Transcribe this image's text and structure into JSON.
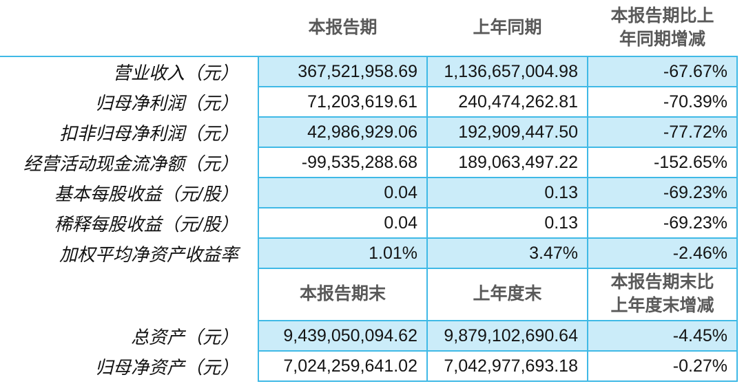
{
  "colors": {
    "cell_fill_blue": "#cbecf9",
    "border_cyan": "#3fb9e6",
    "header_text_gray": "#595959",
    "body_text": "#141414"
  },
  "table": {
    "period_header": {
      "current": "本报告期",
      "prior": "上年同期",
      "change_line1": "本报告期比上",
      "change_line2": "年同期增减"
    },
    "period_rows": [
      {
        "label": "营业收入（元）",
        "current": "367,521,958.69",
        "prior": "1,136,657,004.98",
        "change": "-67.67%"
      },
      {
        "label": "归母净利润（元）",
        "current": "71,203,619.61",
        "prior": "240,474,262.81",
        "change": "-70.39%"
      },
      {
        "label": "扣非归母净利润（元）",
        "current": "42,986,929.06",
        "prior": "192,909,447.50",
        "change": "-77.72%"
      },
      {
        "label": "经营活动现金流净额（元）",
        "current": "-99,535,288.68",
        "prior": "189,063,497.22",
        "change": "-152.65%"
      },
      {
        "label": "基本每股收益（元/股）",
        "current": "0.04",
        "prior": "0.13",
        "change": "-69.23%"
      },
      {
        "label": "稀释每股收益（元/股）",
        "current": "0.04",
        "prior": "0.13",
        "change": "-69.23%"
      },
      {
        "label": "加权平均净资产收益率",
        "current": "1.01%",
        "prior": "3.47%",
        "change": "-2.46%"
      }
    ],
    "balance_header": {
      "current": "本报告期末",
      "prior": "上年度末",
      "change_line1": "本报告期末比",
      "change_line2": "上年度末增减"
    },
    "balance_rows": [
      {
        "label": "总资产（元）",
        "current": "9,439,050,094.62",
        "prior": "9,879,102,690.64",
        "change": "-4.45%"
      },
      {
        "label": "归母净资产（元）",
        "current": "7,024,259,641.02",
        "prior": "7,042,977,693.18",
        "change": "-0.27%"
      }
    ]
  }
}
